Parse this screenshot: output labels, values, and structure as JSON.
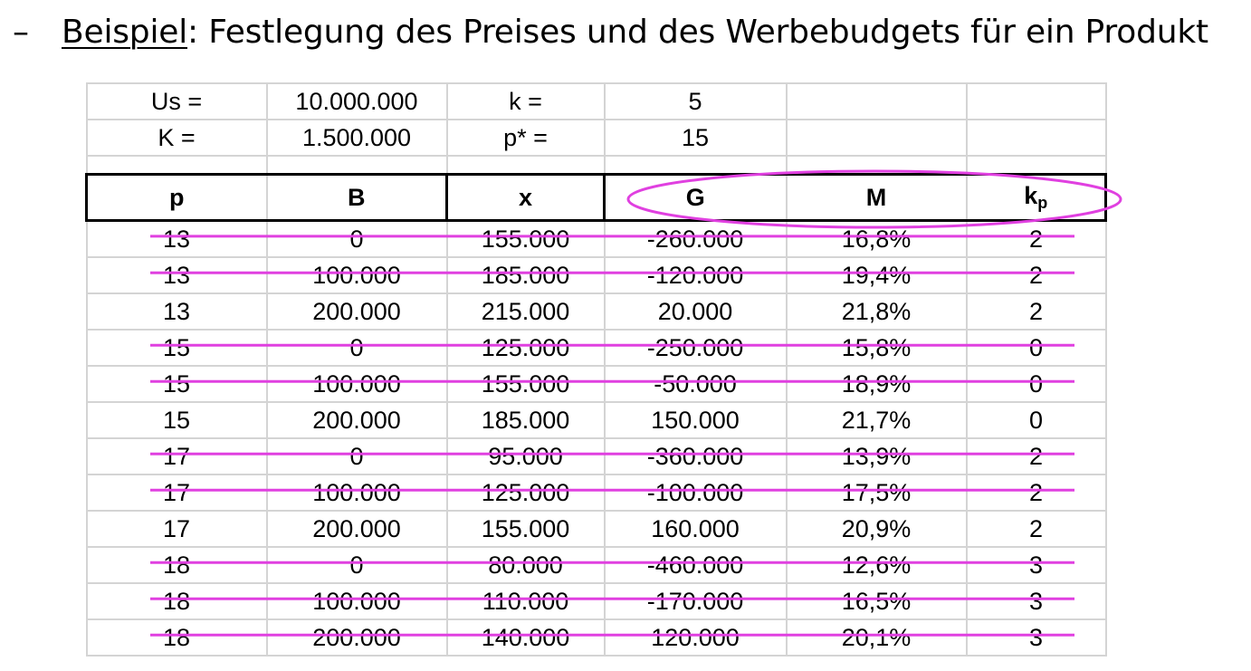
{
  "headline": {
    "dash": "–",
    "keyword": "Beispiel",
    "rest": ": Festlegung des Preises und des Werbebudgets für ein Produkt"
  },
  "parameters": [
    {
      "label1": "Us =",
      "value1": "10.000.000",
      "label2": "k =",
      "value2": "5"
    },
    {
      "label1": "K  =",
      "value1": "1.500.000",
      "label2": "p* =",
      "value2": "15"
    }
  ],
  "columns": [
    {
      "text": "p",
      "sub": ""
    },
    {
      "text": "B",
      "sub": ""
    },
    {
      "text": "x",
      "sub": ""
    },
    {
      "text": "G",
      "sub": ""
    },
    {
      "text": "M",
      "sub": ""
    },
    {
      "text": "k",
      "sub": "p"
    }
  ],
  "rows": [
    {
      "cells": [
        "13",
        "0",
        "155.000",
        "-260.000",
        "16,8%",
        "2"
      ],
      "struck": true
    },
    {
      "cells": [
        "13",
        "100.000",
        "185.000",
        "-120.000",
        "19,4%",
        "2"
      ],
      "struck": true
    },
    {
      "cells": [
        "13",
        "200.000",
        "215.000",
        "20.000",
        "21,8%",
        "2"
      ],
      "struck": false
    },
    {
      "cells": [
        "15",
        "0",
        "125.000",
        "-250.000",
        "15,8%",
        "0"
      ],
      "struck": true
    },
    {
      "cells": [
        "15",
        "100.000",
        "155.000",
        "-50.000",
        "18,9%",
        "0"
      ],
      "struck": true
    },
    {
      "cells": [
        "15",
        "200.000",
        "185.000",
        "150.000",
        "21,7%",
        "0"
      ],
      "struck": false
    },
    {
      "cells": [
        "17",
        "0",
        "95.000",
        "-360.000",
        "13,9%",
        "2"
      ],
      "struck": true
    },
    {
      "cells": [
        "17",
        "100.000",
        "125.000",
        "-100.000",
        "17,5%",
        "2"
      ],
      "struck": true
    },
    {
      "cells": [
        "17",
        "200.000",
        "155.000",
        "160.000",
        "20,9%",
        "2"
      ],
      "struck": false
    },
    {
      "cells": [
        "18",
        "0",
        "80.000",
        "-460.000",
        "12,6%",
        "3"
      ],
      "struck": true
    },
    {
      "cells": [
        "18",
        "100.000",
        "110.000",
        "-170.000",
        "16,5%",
        "3"
      ],
      "struck": true
    },
    {
      "cells": [
        "18",
        "200.000",
        "140.000",
        "120.000",
        "20,1%",
        "3"
      ],
      "struck": true
    }
  ],
  "colors": {
    "highlight": "#e040e0",
    "grid": "#d4d4d4",
    "header_border": "#000000"
  }
}
